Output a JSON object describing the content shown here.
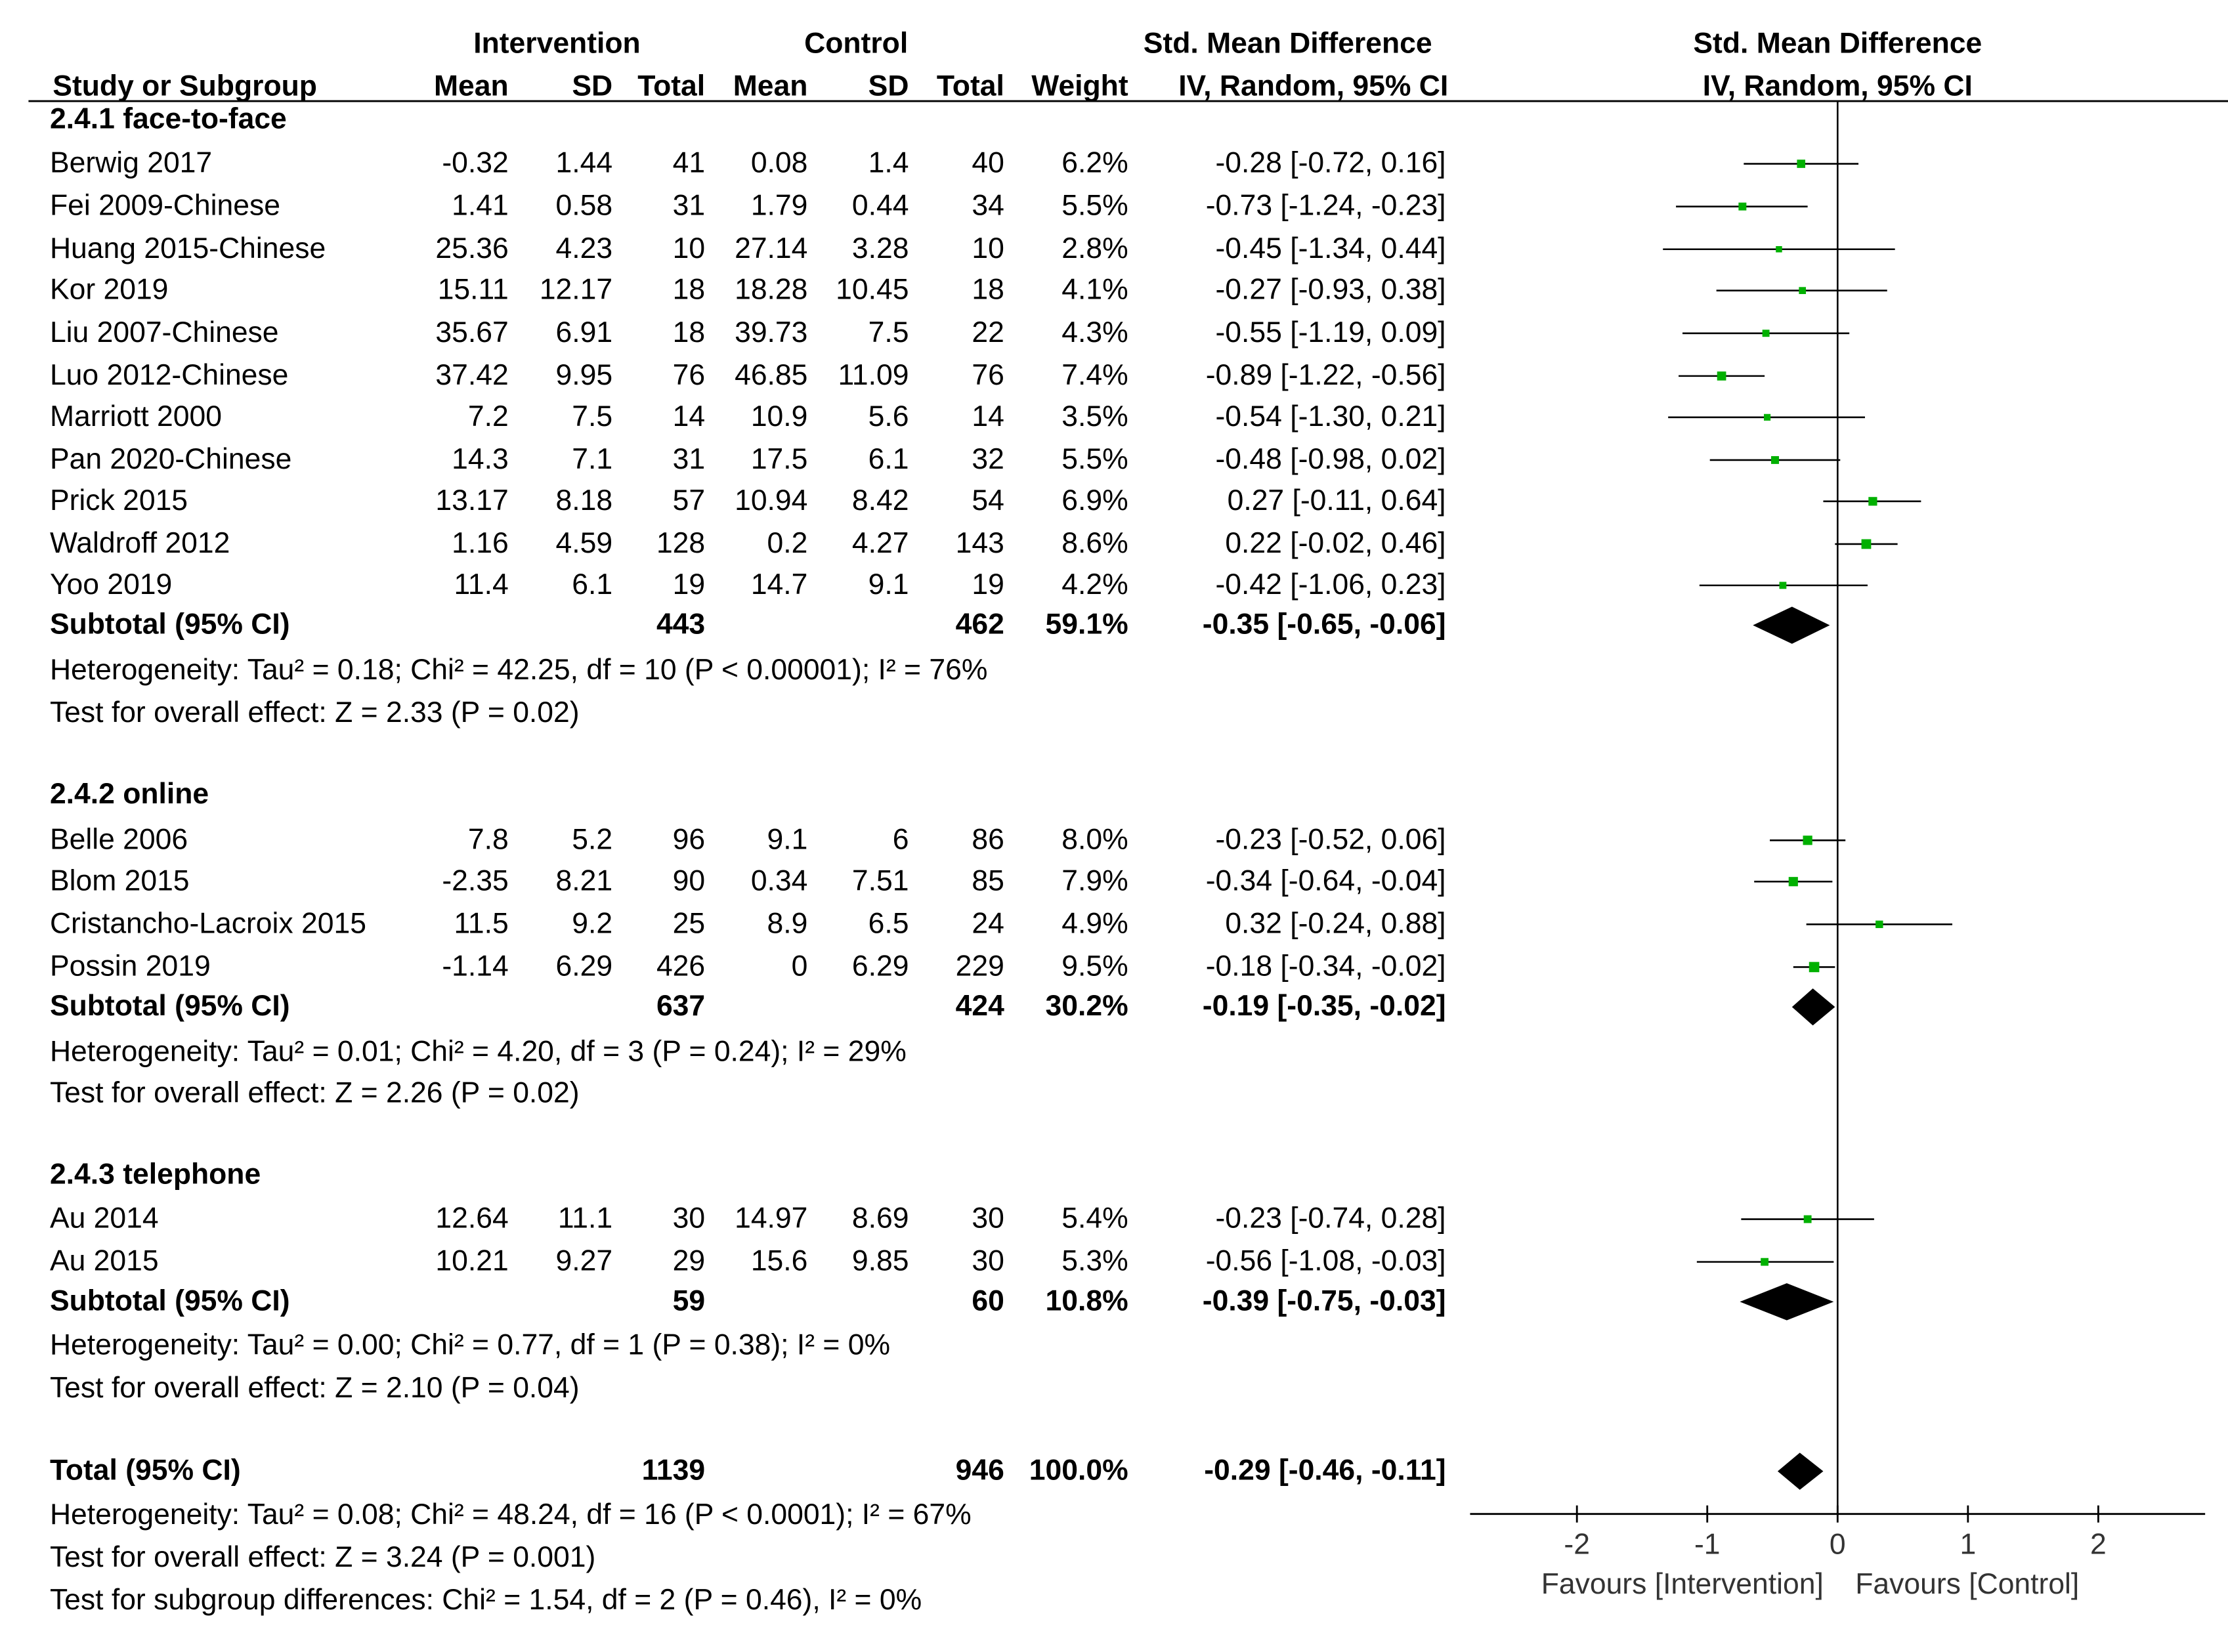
{
  "headers": {
    "intervention": "Intervention",
    "control": "Control",
    "smd": "Std. Mean Difference",
    "study": "Study or Subgroup",
    "mean": "Mean",
    "sd": "SD",
    "total": "Total",
    "weight": "Weight",
    "method": "IV, Random, 95% CI"
  },
  "rows": [
    {
      "kind": "group",
      "label": "2.4.1 face-to-face"
    },
    {
      "kind": "study",
      "name": "Berwig 2017",
      "i_mean": "-0.32",
      "i_sd": "1.44",
      "i_total": "41",
      "c_mean": "0.08",
      "c_sd": "1.4",
      "c_total": "40",
      "weight": "6.2%",
      "ci_text": "-0.28 [-0.72, 0.16]",
      "est": -0.28,
      "lo": -0.72,
      "hi": 0.16
    },
    {
      "kind": "study",
      "name": "Fei 2009-Chinese",
      "i_mean": "1.41",
      "i_sd": "0.58",
      "i_total": "31",
      "c_mean": "1.79",
      "c_sd": "0.44",
      "c_total": "34",
      "weight": "5.5%",
      "ci_text": "-0.73 [-1.24, -0.23]",
      "est": -0.73,
      "lo": -1.24,
      "hi": -0.23
    },
    {
      "kind": "study",
      "name": "Huang 2015-Chinese",
      "i_mean": "25.36",
      "i_sd": "4.23",
      "i_total": "10",
      "c_mean": "27.14",
      "c_sd": "3.28",
      "c_total": "10",
      "weight": "2.8%",
      "ci_text": "-0.45 [-1.34, 0.44]",
      "est": -0.45,
      "lo": -1.34,
      "hi": 0.44
    },
    {
      "kind": "study",
      "name": "Kor 2019",
      "i_mean": "15.11",
      "i_sd": "12.17",
      "i_total": "18",
      "c_mean": "18.28",
      "c_sd": "10.45",
      "c_total": "18",
      "weight": "4.1%",
      "ci_text": "-0.27 [-0.93, 0.38]",
      "est": -0.27,
      "lo": -0.93,
      "hi": 0.38
    },
    {
      "kind": "study",
      "name": "Liu 2007-Chinese",
      "i_mean": "35.67",
      "i_sd": "6.91",
      "i_total": "18",
      "c_mean": "39.73",
      "c_sd": "7.5",
      "c_total": "22",
      "weight": "4.3%",
      "ci_text": "-0.55 [-1.19, 0.09]",
      "est": -0.55,
      "lo": -1.19,
      "hi": 0.09
    },
    {
      "kind": "study",
      "name": "Luo 2012-Chinese",
      "i_mean": "37.42",
      "i_sd": "9.95",
      "i_total": "76",
      "c_mean": "46.85",
      "c_sd": "11.09",
      "c_total": "76",
      "weight": "7.4%",
      "ci_text": "-0.89 [-1.22, -0.56]",
      "est": -0.89,
      "lo": -1.22,
      "hi": -0.56
    },
    {
      "kind": "study",
      "name": "Marriott 2000",
      "i_mean": "7.2",
      "i_sd": "7.5",
      "i_total": "14",
      "c_mean": "10.9",
      "c_sd": "5.6",
      "c_total": "14",
      "weight": "3.5%",
      "ci_text": "-0.54 [-1.30, 0.21]",
      "est": -0.54,
      "lo": -1.3,
      "hi": 0.21
    },
    {
      "kind": "study",
      "name": "Pan 2020-Chinese",
      "i_mean": "14.3",
      "i_sd": "7.1",
      "i_total": "31",
      "c_mean": "17.5",
      "c_sd": "6.1",
      "c_total": "32",
      "weight": "5.5%",
      "ci_text": "-0.48 [-0.98, 0.02]",
      "est": -0.48,
      "lo": -0.98,
      "hi": 0.02
    },
    {
      "kind": "study",
      "name": "Prick 2015",
      "i_mean": "13.17",
      "i_sd": "8.18",
      "i_total": "57",
      "c_mean": "10.94",
      "c_sd": "8.42",
      "c_total": "54",
      "weight": "6.9%",
      "ci_text": "0.27 [-0.11, 0.64]",
      "est": 0.27,
      "lo": -0.11,
      "hi": 0.64
    },
    {
      "kind": "study",
      "name": "Waldroff 2012",
      "i_mean": "1.16",
      "i_sd": "4.59",
      "i_total": "128",
      "c_mean": "0.2",
      "c_sd": "4.27",
      "c_total": "143",
      "weight": "8.6%",
      "ci_text": "0.22 [-0.02, 0.46]",
      "est": 0.22,
      "lo": -0.02,
      "hi": 0.46
    },
    {
      "kind": "study",
      "name": "Yoo 2019",
      "i_mean": "11.4",
      "i_sd": "6.1",
      "i_total": "19",
      "c_mean": "14.7",
      "c_sd": "9.1",
      "c_total": "19",
      "weight": "4.2%",
      "ci_text": "-0.42 [-1.06, 0.23]",
      "est": -0.42,
      "lo": -1.06,
      "hi": 0.23
    },
    {
      "kind": "subtotal",
      "name": "Subtotal (95% CI)",
      "i_total": "443",
      "c_total": "462",
      "weight": "59.1%",
      "ci_text": "-0.35 [-0.65, -0.06]",
      "est": -0.35,
      "lo": -0.65,
      "hi": -0.06
    },
    {
      "kind": "note",
      "text": "Heterogeneity: Tau² = 0.18; Chi² = 42.25, df = 10 (P < 0.00001); I² = 76%"
    },
    {
      "kind": "note",
      "text": "Test for overall effect: Z = 2.33 (P = 0.02)"
    },
    {
      "kind": "blank"
    },
    {
      "kind": "group",
      "label": "2.4.2 online"
    },
    {
      "kind": "study",
      "name": "Belle 2006",
      "i_mean": "7.8",
      "i_sd": "5.2",
      "i_total": "96",
      "c_mean": "9.1",
      "c_sd": "6",
      "c_total": "86",
      "weight": "8.0%",
      "ci_text": "-0.23 [-0.52, 0.06]",
      "est": -0.23,
      "lo": -0.52,
      "hi": 0.06
    },
    {
      "kind": "study",
      "name": "Blom 2015",
      "i_mean": "-2.35",
      "i_sd": "8.21",
      "i_total": "90",
      "c_mean": "0.34",
      "c_sd": "7.51",
      "c_total": "85",
      "weight": "7.9%",
      "ci_text": "-0.34 [-0.64, -0.04]",
      "est": -0.34,
      "lo": -0.64,
      "hi": -0.04
    },
    {
      "kind": "study",
      "name": "Cristancho-Lacroix 2015",
      "i_mean": "11.5",
      "i_sd": "9.2",
      "i_total": "25",
      "c_mean": "8.9",
      "c_sd": "6.5",
      "c_total": "24",
      "weight": "4.9%",
      "ci_text": "0.32 [-0.24, 0.88]",
      "est": 0.32,
      "lo": -0.24,
      "hi": 0.88
    },
    {
      "kind": "study",
      "name": "Possin 2019",
      "i_mean": "-1.14",
      "i_sd": "6.29",
      "i_total": "426",
      "c_mean": "0",
      "c_sd": "6.29",
      "c_total": "229",
      "weight": "9.5%",
      "ci_text": "-0.18 [-0.34, -0.02]",
      "est": -0.18,
      "lo": -0.34,
      "hi": -0.02
    },
    {
      "kind": "subtotal",
      "name": "Subtotal (95% CI)",
      "i_total": "637",
      "c_total": "424",
      "weight": "30.2%",
      "ci_text": "-0.19 [-0.35, -0.02]",
      "est": -0.19,
      "lo": -0.35,
      "hi": -0.02
    },
    {
      "kind": "note",
      "text": "Heterogeneity: Tau² = 0.01; Chi² = 4.20, df = 3 (P = 0.24); I² = 29%"
    },
    {
      "kind": "note",
      "text": "Test for overall effect: Z = 2.26 (P = 0.02)"
    },
    {
      "kind": "blank"
    },
    {
      "kind": "group",
      "label": "2.4.3 telephone"
    },
    {
      "kind": "study",
      "name": "Au 2014",
      "i_mean": "12.64",
      "i_sd": "11.1",
      "i_total": "30",
      "c_mean": "14.97",
      "c_sd": "8.69",
      "c_total": "30",
      "weight": "5.4%",
      "ci_text": "-0.23 [-0.74, 0.28]",
      "est": -0.23,
      "lo": -0.74,
      "hi": 0.28
    },
    {
      "kind": "study",
      "name": "Au 2015",
      "i_mean": "10.21",
      "i_sd": "9.27",
      "i_total": "29",
      "c_mean": "15.6",
      "c_sd": "9.85",
      "c_total": "30",
      "weight": "5.3%",
      "ci_text": "-0.56 [-1.08, -0.03]",
      "est": -0.56,
      "lo": -1.08,
      "hi": -0.03
    },
    {
      "kind": "subtotal",
      "name": "Subtotal (95% CI)",
      "i_total": "59",
      "c_total": "60",
      "weight": "10.8%",
      "ci_text": "-0.39 [-0.75, -0.03]",
      "est": -0.39,
      "lo": -0.75,
      "hi": -0.03
    },
    {
      "kind": "note",
      "text": "Heterogeneity: Tau² = 0.00; Chi² = 0.77, df = 1 (P = 0.38); I² = 0%"
    },
    {
      "kind": "note",
      "text": "Test for overall effect: Z = 2.10 (P = 0.04)"
    },
    {
      "kind": "blank"
    },
    {
      "kind": "total",
      "name": "Total (95% CI)",
      "i_total": "1139",
      "c_total": "946",
      "weight": "100.0%",
      "ci_text": "-0.29 [-0.46, -0.11]",
      "est": -0.29,
      "lo": -0.46,
      "hi": -0.11
    },
    {
      "kind": "note",
      "text": "Heterogeneity: Tau² = 0.08; Chi² = 48.24, df = 16 (P < 0.0001); I² = 67%"
    },
    {
      "kind": "note",
      "text": "Test for overall effect: Z = 3.24 (P = 0.001)"
    },
    {
      "kind": "note",
      "text": "Test for subgroup differences: Chi² = 1.54, df = 2 (P = 0.46), I² = 0%"
    }
  ],
  "chart_data": {
    "type": "scatter",
    "subtype": "forest",
    "x_ticks": [
      "-2",
      "-1",
      "0",
      "1",
      "2"
    ],
    "xlim": [
      -2,
      2
    ],
    "x_label_left": "Favours [Intervention]",
    "x_label_right": "Favours [Control]",
    "point_color": "#00b000",
    "diamond_color": "#000000"
  }
}
